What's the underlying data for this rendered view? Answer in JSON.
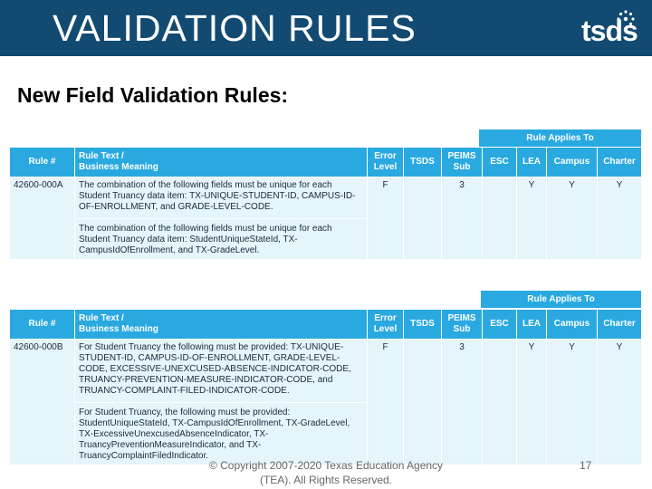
{
  "header": {
    "title": "VALIDATION RULES",
    "logo_text": "tsds"
  },
  "subtitle": "New Field Validation Rules:",
  "columns": {
    "rule_num": "Rule #",
    "rule_text_1": "Rule Text /",
    "rule_text_2": "Business Meaning",
    "error_level_1": "Error",
    "error_level_2": "Level",
    "tsds": "TSDS",
    "peims_1": "PEIMS",
    "peims_2": "Sub",
    "esc": "ESC",
    "lea": "LEA",
    "campus": "Campus",
    "charter": "Charter"
  },
  "rule_applies_to": "Rule Applies To",
  "rules": [
    {
      "number": "42600-000A",
      "text_main": "The combination of the following fields must be unique for each Student Truancy data item: TX-UNIQUE-STUDENT-ID, CAMPUS-ID-OF-ENROLLMENT, and GRADE-LEVEL-CODE.",
      "text_alt": "The combination of the following fields must be unique for each Student Truancy data item: StudentUniqueStateId, TX-CampusIdOfEnrollment, and TX-GradeLevel.",
      "error_level": "F",
      "tsds": "",
      "peims_sub": "3",
      "esc": "",
      "lea": "Y",
      "campus": "Y",
      "charter": "Y"
    },
    {
      "number": "42600-000B",
      "text_main": "For Student Truancy the following must be provided: TX-UNIQUE-STUDENT-ID, CAMPUS-ID-OF-ENROLLMENT, GRADE-LEVEL-CODE, EXCESSIVE-UNEXCUSED-ABSENCE-INDICATOR-CODE, TRUANCY-PREVENTION-MEASURE-INDICATOR-CODE, and TRUANCY-COMPLAINT-FILED-INDICATOR-CODE.",
      "text_alt": "For Student Truancy, the following must be provided: StudentUniqueStateId, TX-CampusIdOfEnrollment, TX-GradeLevel, TX-ExcessiveUnexcusedAbsenceIndicator, TX-TruancyPreventionMeasureIndicator, and TX-TruancyComplaintFiledIndicator.",
      "error_level": "F",
      "tsds": "",
      "peims_sub": "3",
      "esc": "",
      "lea": "Y",
      "campus": "Y",
      "charter": "Y"
    }
  ],
  "footer": {
    "copyright": "© Copyright 2007-2020 Texas Education Agency (TEA). All Rights Reserved.",
    "page_number": "17"
  },
  "colors": {
    "header_bg": "#124a72",
    "table_header": "#29a9e0",
    "table_body": "#e6f4fb"
  }
}
